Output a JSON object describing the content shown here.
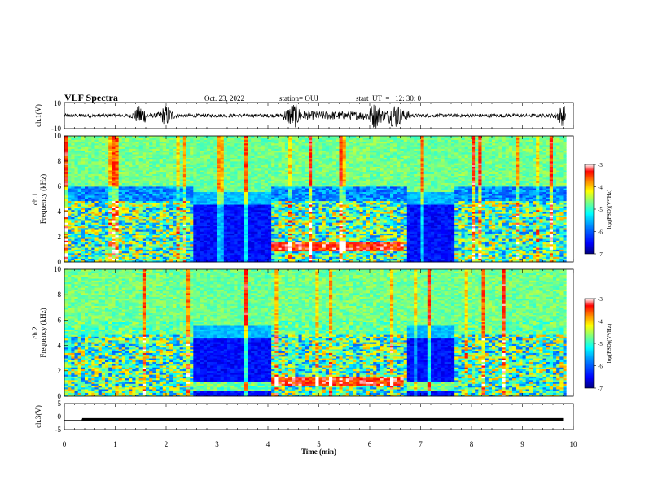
{
  "header": {
    "title": "VLF Spectra",
    "date": "Oct. 23, 2022",
    "station": "station= OUJ",
    "start_ut": "start  UT  =   12: 30: 0"
  },
  "chart_data": [
    {
      "type": "line",
      "ylabel": "ch.1(V)",
      "ylim": [
        -10,
        10
      ],
      "y_tick_labels": [
        "10",
        "-10"
      ],
      "description_values": "noisy waveform around 0 V with bursts near 1.5, 2, 4.5, 6, 6.5 and 9.8 min",
      "bursts_min": [
        1.5,
        2.0,
        4.5,
        6.1,
        6.5,
        9.8
      ]
    },
    {
      "type": "heatmap",
      "ylabel": "ch.1\nFrequency (kHz)",
      "ylabel_top": "ch.1",
      "ylabel_bottom": "Frequency (kHz)",
      "ylim": [
        0,
        10
      ],
      "y_ticks": [
        "0",
        "2",
        "4",
        "6",
        "8",
        "10"
      ],
      "colorbar": {
        "label": "log(PSD)(V²/Hz)",
        "ticks": [
          "-3",
          "-4",
          "-5",
          "-6",
          "-7"
        ],
        "range": [
          -7,
          -3
        ]
      },
      "quiet_intervals_min": [
        [
          2.55,
          4.05
        ],
        [
          6.75,
          7.65
        ]
      ]
    },
    {
      "type": "heatmap",
      "ylabel": "ch.2\nFrequency (kHz)",
      "ylabel_top": "ch.2",
      "ylabel_bottom": "Frequency (kHz)",
      "ylim": [
        0,
        10
      ],
      "y_ticks": [
        "0",
        "2",
        "4",
        "6",
        "8",
        "10"
      ],
      "colorbar": {
        "label": "log(PSD)(V²/Hz)",
        "ticks": [
          "-3",
          "-4",
          "-5",
          "-6",
          "-7"
        ],
        "range": [
          -7,
          -3
        ]
      },
      "quiet_intervals_min": [
        [
          2.55,
          4.05
        ],
        [
          6.75,
          7.65
        ]
      ]
    },
    {
      "type": "line",
      "ylabel": "ch.3(V)",
      "ylim": [
        -5,
        5
      ],
      "y_tick_labels": [
        "5",
        "0",
        "-5"
      ],
      "x": [
        0,
        0.35,
        0.35,
        9.8
      ],
      "y": [
        -1.5,
        -1.5,
        -1.2,
        -1.2
      ]
    }
  ],
  "x_axis": {
    "label": "Time  (min)",
    "ticks": [
      "0",
      "1",
      "2",
      "3",
      "4",
      "5",
      "6",
      "7",
      "8",
      "9",
      "10"
    ],
    "xlim": [
      0,
      10
    ]
  },
  "colors": {
    "colormap": [
      "#00007f",
      "#0000ff",
      "#007fff",
      "#00ffff",
      "#7fff7f",
      "#ffff00",
      "#ff7f00",
      "#ff0000",
      "#ffffff"
    ]
  }
}
